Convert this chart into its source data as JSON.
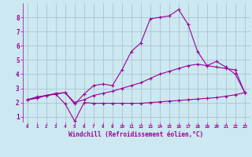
{
  "xlabel": "Windchill (Refroidissement éolien,°C)",
  "ylabel": "",
  "bg_color": "#cce8f0",
  "line_color": "#990099",
  "grid_color": "#aabbcc",
  "xlim": [
    -0.5,
    23.5
  ],
  "ylim": [
    0.6,
    9.0
  ],
  "xticks": [
    0,
    1,
    2,
    3,
    4,
    5,
    6,
    7,
    8,
    9,
    10,
    11,
    12,
    13,
    14,
    15,
    16,
    17,
    18,
    19,
    20,
    21,
    22,
    23
  ],
  "yticks": [
    1,
    2,
    3,
    4,
    5,
    6,
    7,
    8
  ],
  "line1_x": [
    0,
    1,
    2,
    3,
    4,
    5,
    6,
    7,
    8,
    9,
    10,
    11,
    12,
    13,
    14,
    15,
    16,
    17,
    18,
    19,
    20,
    21,
    22,
    23
  ],
  "line1_y": [
    2.2,
    2.3,
    2.5,
    2.6,
    1.9,
    0.7,
    2.0,
    1.95,
    1.95,
    1.95,
    1.95,
    1.95,
    1.95,
    2.0,
    2.05,
    2.1,
    2.15,
    2.2,
    2.25,
    2.3,
    2.35,
    2.45,
    2.55,
    2.7
  ],
  "line2_x": [
    0,
    1,
    2,
    3,
    4,
    5,
    6,
    7,
    8,
    9,
    10,
    11,
    12,
    13,
    14,
    15,
    16,
    17,
    18,
    19,
    20,
    21,
    22,
    23
  ],
  "line2_y": [
    2.2,
    2.4,
    2.5,
    2.6,
    2.7,
    1.9,
    2.6,
    3.2,
    3.3,
    3.2,
    4.3,
    5.6,
    6.2,
    7.9,
    8.0,
    8.1,
    8.55,
    7.5,
    5.6,
    4.6,
    4.9,
    4.5,
    4.0,
    2.7
  ],
  "line3_x": [
    0,
    1,
    2,
    3,
    4,
    5,
    6,
    7,
    8,
    9,
    10,
    11,
    12,
    13,
    14,
    15,
    16,
    17,
    18,
    19,
    20,
    21,
    22,
    23
  ],
  "line3_y": [
    2.2,
    2.35,
    2.5,
    2.65,
    2.7,
    2.0,
    2.2,
    2.5,
    2.65,
    2.8,
    3.0,
    3.2,
    3.4,
    3.7,
    4.0,
    4.2,
    4.4,
    4.6,
    4.7,
    4.6,
    4.5,
    4.4,
    4.3,
    2.7
  ]
}
